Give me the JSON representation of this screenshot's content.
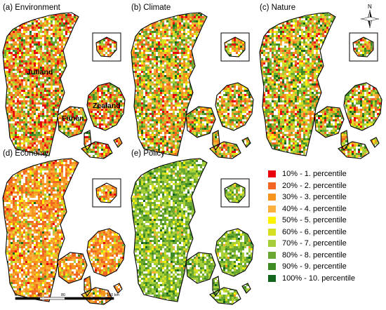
{
  "panels": [
    {
      "label": "(a) Environment",
      "palette": "environment"
    },
    {
      "label": "(b) Climate",
      "palette": "climate"
    },
    {
      "label": "(c) Nature",
      "palette": "nature"
    },
    {
      "label": "(d) Economy",
      "palette": "economy"
    },
    {
      "label": "(e) Policy",
      "palette": "policy"
    }
  ],
  "regions": [
    "Jutland",
    "Funen",
    "Zealand"
  ],
  "legend": {
    "items": [
      {
        "label": "10% - 1. percentile",
        "color": "#e8000b"
      },
      {
        "label": "20% - 2. percentile",
        "color": "#f26522"
      },
      {
        "label": "30% - 3. percentile",
        "color": "#f7941d"
      },
      {
        "label": "40% - 4. percentile",
        "color": "#fbb03b"
      },
      {
        "label": "50% - 5. percentile",
        "color": "#fff200"
      },
      {
        "label": "60% - 6. percentile",
        "color": "#d7df23"
      },
      {
        "label": "70% - 7. percentile",
        "color": "#a6ce39"
      },
      {
        "label": "80% - 8. percentile",
        "color": "#6aa832"
      },
      {
        "label": "90% - 9. percentile",
        "color": "#3e8a23"
      },
      {
        "label": "100% - 10. percentile",
        "color": "#12661c"
      }
    ]
  },
  "scale_bar": {
    "ticks": [
      "0",
      "40",
      "80",
      "160 km"
    ]
  },
  "north_arrow": {
    "label": "N"
  }
}
